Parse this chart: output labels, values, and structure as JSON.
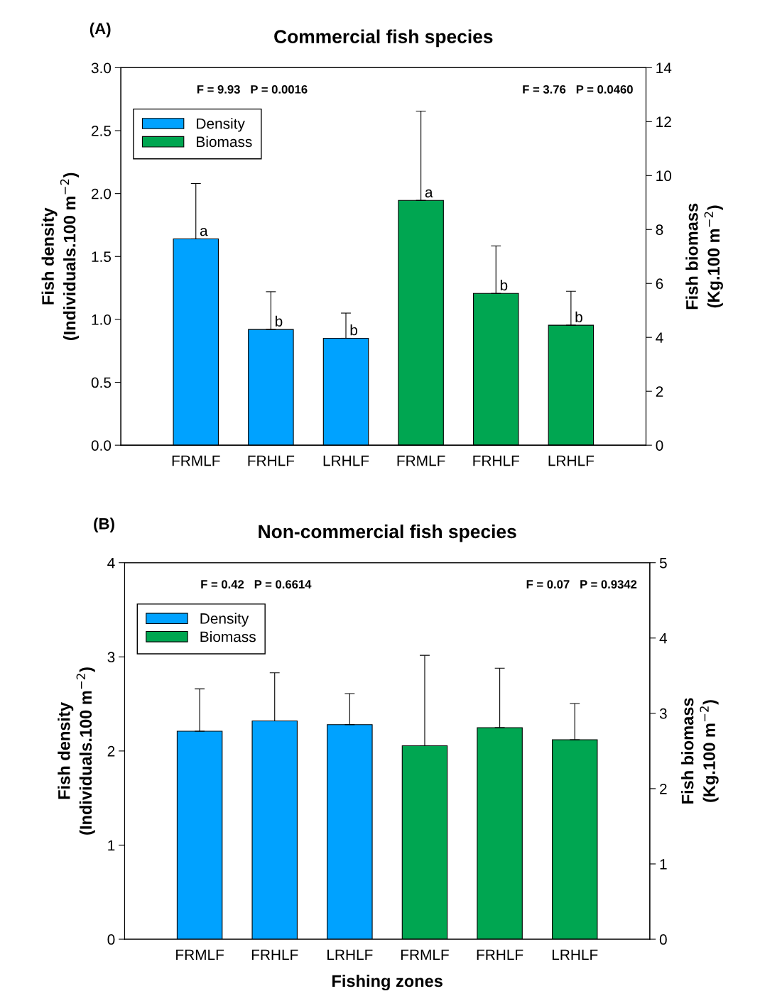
{
  "chart_data": [
    {
      "type": "bar",
      "title": "Commercial fish species",
      "ylabel": "Fish density\n(Individuals.100 m$^{−2}$)",
      "y2label": "Fish biomass\n(Kg.100 m$^{−2}$)",
      "annotations": [
        "(A)",
        "F = 9.93   P = 0.0016",
        "F = 3.76   P = 0.0460"
      ],
      "categories": [
        "FRMLF",
        "FRHLF",
        "LRHLF",
        "FRMLF",
        "FRHLF",
        "LRHLF"
      ],
      "series": [
        {
          "name": "Density",
          "color": "#00a2ff",
          "values": [
            1.64,
            0.92,
            0.85,
            null,
            null,
            null
          ],
          "errors": [
            [
              1.64,
              2.08
            ],
            [
              0.92,
              1.22
            ],
            [
              0.85,
              1.05
            ],
            null,
            null,
            null
          ],
          "value_labels": [
            "a",
            "b",
            "b",
            null,
            null,
            null
          ]
        },
        {
          "name": "Biomass",
          "color": "#00a651",
          "axis": "y2",
          "values": [
            null,
            null,
            null,
            9.08,
            5.63,
            4.45
          ],
          "errors": [
            null,
            null,
            null,
            [
              9.08,
              12.39
            ],
            [
              5.63,
              7.39
            ],
            [
              4.45,
              5.71
            ]
          ],
          "value_labels": [
            null,
            null,
            null,
            "a",
            "b",
            "b"
          ]
        }
      ],
      "ylim": [
        0,
        3.0
      ],
      "yticks": [
        {
          "value": 0,
          "label": "0.0"
        },
        0.5,
        {
          "value": 1,
          "label": "1.0"
        },
        1.5,
        {
          "value": 2,
          "label": "2.0"
        },
        2.5,
        {
          "value": 3,
          "label": "3.0"
        }
      ],
      "y2lim": [
        0,
        14
      ],
      "y2ticks": [
        0,
        2,
        4,
        6,
        8,
        10,
        12,
        14
      ],
      "legend": "top left",
      "grid": false
    },
    {
      "type": "bar",
      "title": "Non-commercial fish species",
      "xlabel": "Fishing zones",
      "ylabel": "Fish density\n(Individuals.100 m$^{−2}$)",
      "y2label": "Fish biomass\n(Kg.100 m$^{−2}$)",
      "annotations": [
        "(B)",
        "F = 0.42   P = 0.6614",
        "F = 0.07   P = 0.9342"
      ],
      "categories": [
        "FRMLF",
        "FRHLF",
        "LRHLF",
        "FRMLF",
        "FRHLF",
        "LRHLF"
      ],
      "series": [
        {
          "name": "Density",
          "color": "#00a2ff",
          "values": [
            2.21,
            2.32,
            2.28,
            null,
            null,
            null
          ],
          "errors": [
            [
              2.21,
              2.66
            ],
            [
              2.32,
              2.83
            ],
            [
              2.28,
              2.61
            ],
            null,
            null,
            null
          ]
        },
        {
          "name": "Biomass",
          "color": "#00a651",
          "axis": "y2",
          "values": [
            null,
            null,
            null,
            2.57,
            2.81,
            2.65
          ],
          "errors": [
            null,
            null,
            null,
            [
              2.57,
              3.77
            ],
            [
              2.81,
              3.6
            ],
            [
              2.65,
              3.13
            ]
          ]
        }
      ],
      "ylim": [
        0,
        4
      ],
      "yticks": [
        0,
        1,
        2,
        3,
        4
      ],
      "y2lim": [
        0,
        5
      ],
      "y2ticks": [
        0,
        1,
        2,
        3,
        4,
        5
      ],
      "legend": "top left",
      "grid": false
    }
  ]
}
